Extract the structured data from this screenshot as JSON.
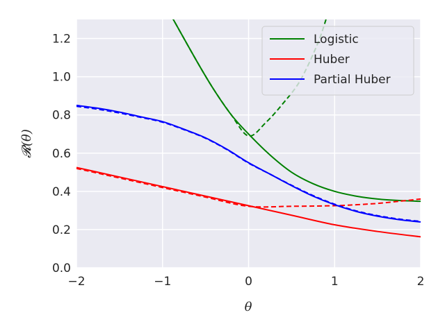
{
  "chart_data": {
    "type": "line",
    "title": "",
    "xlabel": "θ",
    "ylabel": "𝓡(θ)",
    "xlim": [
      -2,
      2
    ],
    "ylim": [
      0,
      1.3
    ],
    "xticks": [
      -2,
      -1,
      0,
      1,
      2
    ],
    "xtick_labels": [
      "−2",
      "−1",
      "0",
      "1",
      "2"
    ],
    "yticks": [
      0.0,
      0.2,
      0.4,
      0.6,
      0.8,
      1.0,
      1.2
    ],
    "ytick_labels": [
      "0.0",
      "0.2",
      "0.4",
      "0.6",
      "0.8",
      "1.0",
      "1.2"
    ],
    "grid": true,
    "legend_position": "top-right",
    "series": [
      {
        "name": "Logistic",
        "color": "#008000",
        "style": "solid",
        "x": [
          -0.9,
          -0.6,
          -0.4,
          -0.2,
          0.0,
          0.25,
          0.5,
          0.75,
          1.0,
          1.25,
          1.5,
          1.75,
          2.0
        ],
        "y": [
          1.32,
          1.08,
          0.93,
          0.8,
          0.7,
          0.59,
          0.5,
          0.44,
          0.4,
          0.375,
          0.36,
          0.352,
          0.348
        ]
      },
      {
        "name": "",
        "color": "#008000",
        "style": "dashed",
        "x": [
          -0.9,
          -0.6,
          -0.4,
          -0.2,
          0.0,
          0.2,
          0.4,
          0.6,
          0.8,
          0.9
        ],
        "y": [
          1.32,
          1.08,
          0.93,
          0.8,
          0.69,
          0.76,
          0.86,
          0.98,
          1.17,
          1.3
        ]
      },
      {
        "name": "Huber",
        "color": "#ff0000",
        "style": "solid",
        "x": [
          -2.0,
          -1.5,
          -1.0,
          -0.5,
          0.0,
          0.5,
          1.0,
          1.5,
          2.0
        ],
        "y": [
          0.525,
          0.475,
          0.425,
          0.375,
          0.325,
          0.275,
          0.225,
          0.19,
          0.162
        ]
      },
      {
        "name": "",
        "color": "#ff0000",
        "style": "dashed",
        "x": [
          -2.0,
          -1.5,
          -1.0,
          -0.5,
          0.0,
          0.5,
          1.0,
          1.25,
          1.5,
          1.75,
          2.0
        ],
        "y": [
          0.52,
          0.47,
          0.42,
          0.37,
          0.322,
          0.322,
          0.325,
          0.33,
          0.337,
          0.348,
          0.36
        ]
      },
      {
        "name": "Partial Huber",
        "color": "#0000ff",
        "style": "solid",
        "x": [
          -2.0,
          -1.75,
          -1.5,
          -1.25,
          -1.0,
          -0.75,
          -0.5,
          -0.25,
          0.0,
          0.25,
          0.5,
          0.75,
          1.0,
          1.25,
          1.5,
          1.75,
          2.0
        ],
        "y": [
          0.85,
          0.835,
          0.815,
          0.79,
          0.765,
          0.725,
          0.68,
          0.62,
          0.55,
          0.49,
          0.43,
          0.375,
          0.33,
          0.295,
          0.27,
          0.252,
          0.24
        ]
      },
      {
        "name": "",
        "color": "#0000ff",
        "style": "dashed",
        "x": [
          -2.0,
          -1.75,
          -1.5,
          -1.25,
          -1.0,
          -0.75,
          -0.5,
          -0.25,
          0.0,
          0.25,
          0.5,
          0.75,
          1.0,
          1.25,
          1.5,
          1.75,
          2.0
        ],
        "y": [
          0.845,
          0.83,
          0.81,
          0.787,
          0.762,
          0.723,
          0.678,
          0.618,
          0.548,
          0.49,
          0.432,
          0.378,
          0.333,
          0.298,
          0.273,
          0.255,
          0.243
        ]
      }
    ]
  }
}
